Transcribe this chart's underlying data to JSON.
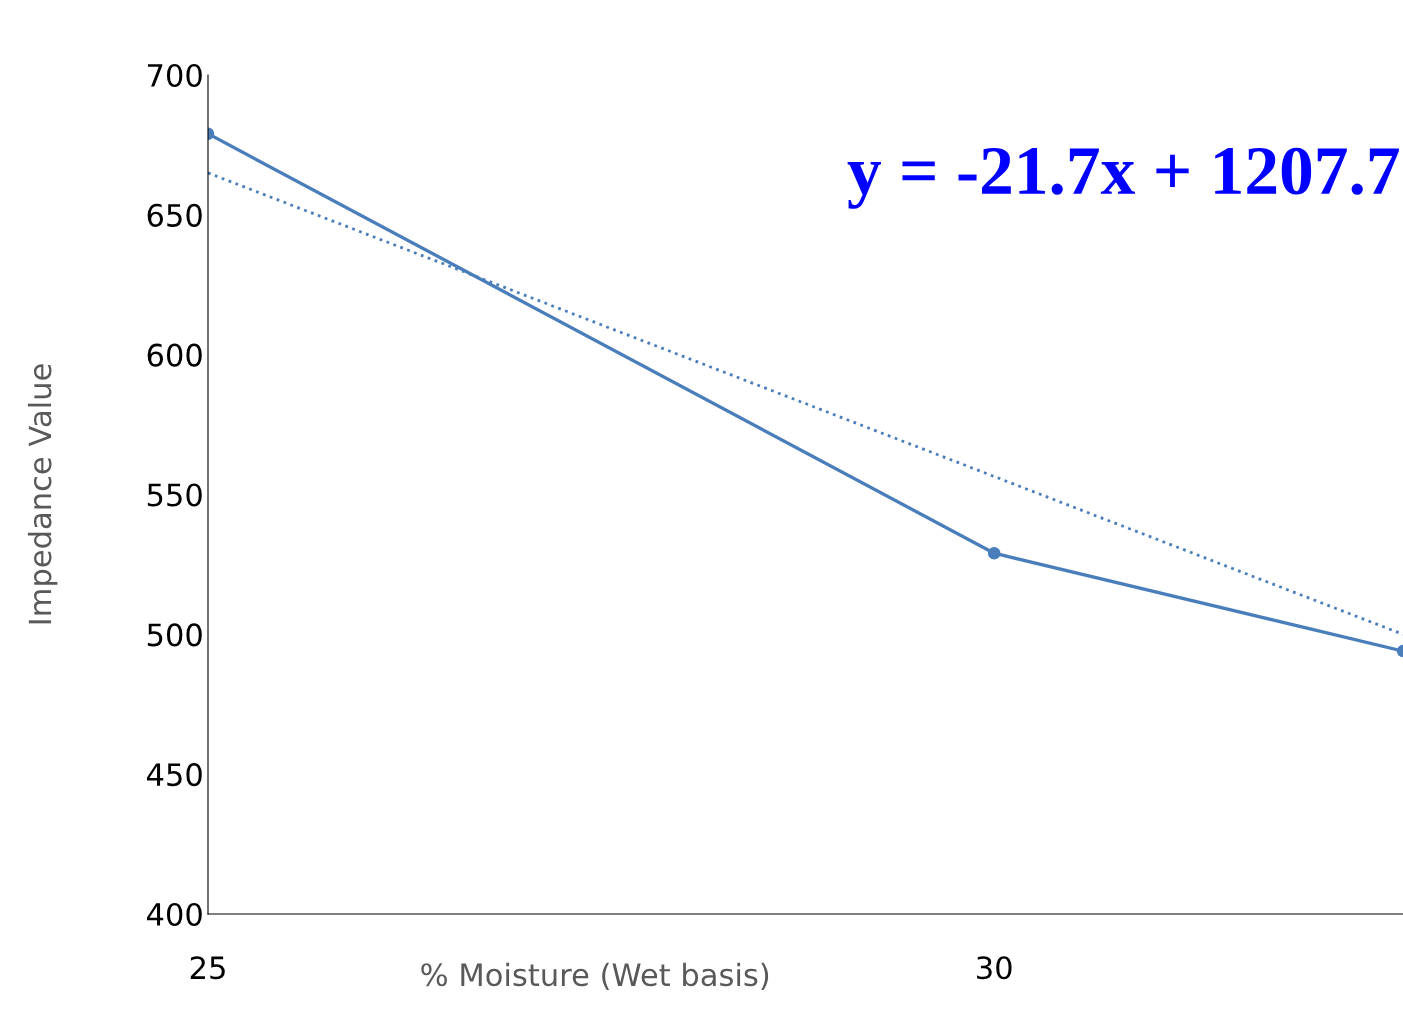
{
  "chart_data": {
    "type": "line",
    "xlabel": "% Moisture (Wet basis)",
    "ylabel": "Impedance Value",
    "series": [
      {
        "color": "#4a7ebb",
        "x": [
          25,
          30,
          32.6
        ],
        "values": [
          679,
          529,
          494
        ],
        "marker": "circle",
        "line_style": "solid"
      },
      {
        "color": "#4a7ebb",
        "x": [
          25,
          32.6
        ],
        "values": [
          665,
          500
        ],
        "marker": "none",
        "line_style": "dotted"
      }
    ],
    "xlim": [
      25,
      32.6
    ],
    "xticks": [
      25,
      30
    ],
    "ylim": [
      400,
      700
    ],
    "yticks": [
      400,
      450,
      500,
      550,
      600,
      650,
      700
    ],
    "annotations": [
      "y = -21.7x + 1207.7"
    ],
    "grid": false,
    "legend": false
  }
}
